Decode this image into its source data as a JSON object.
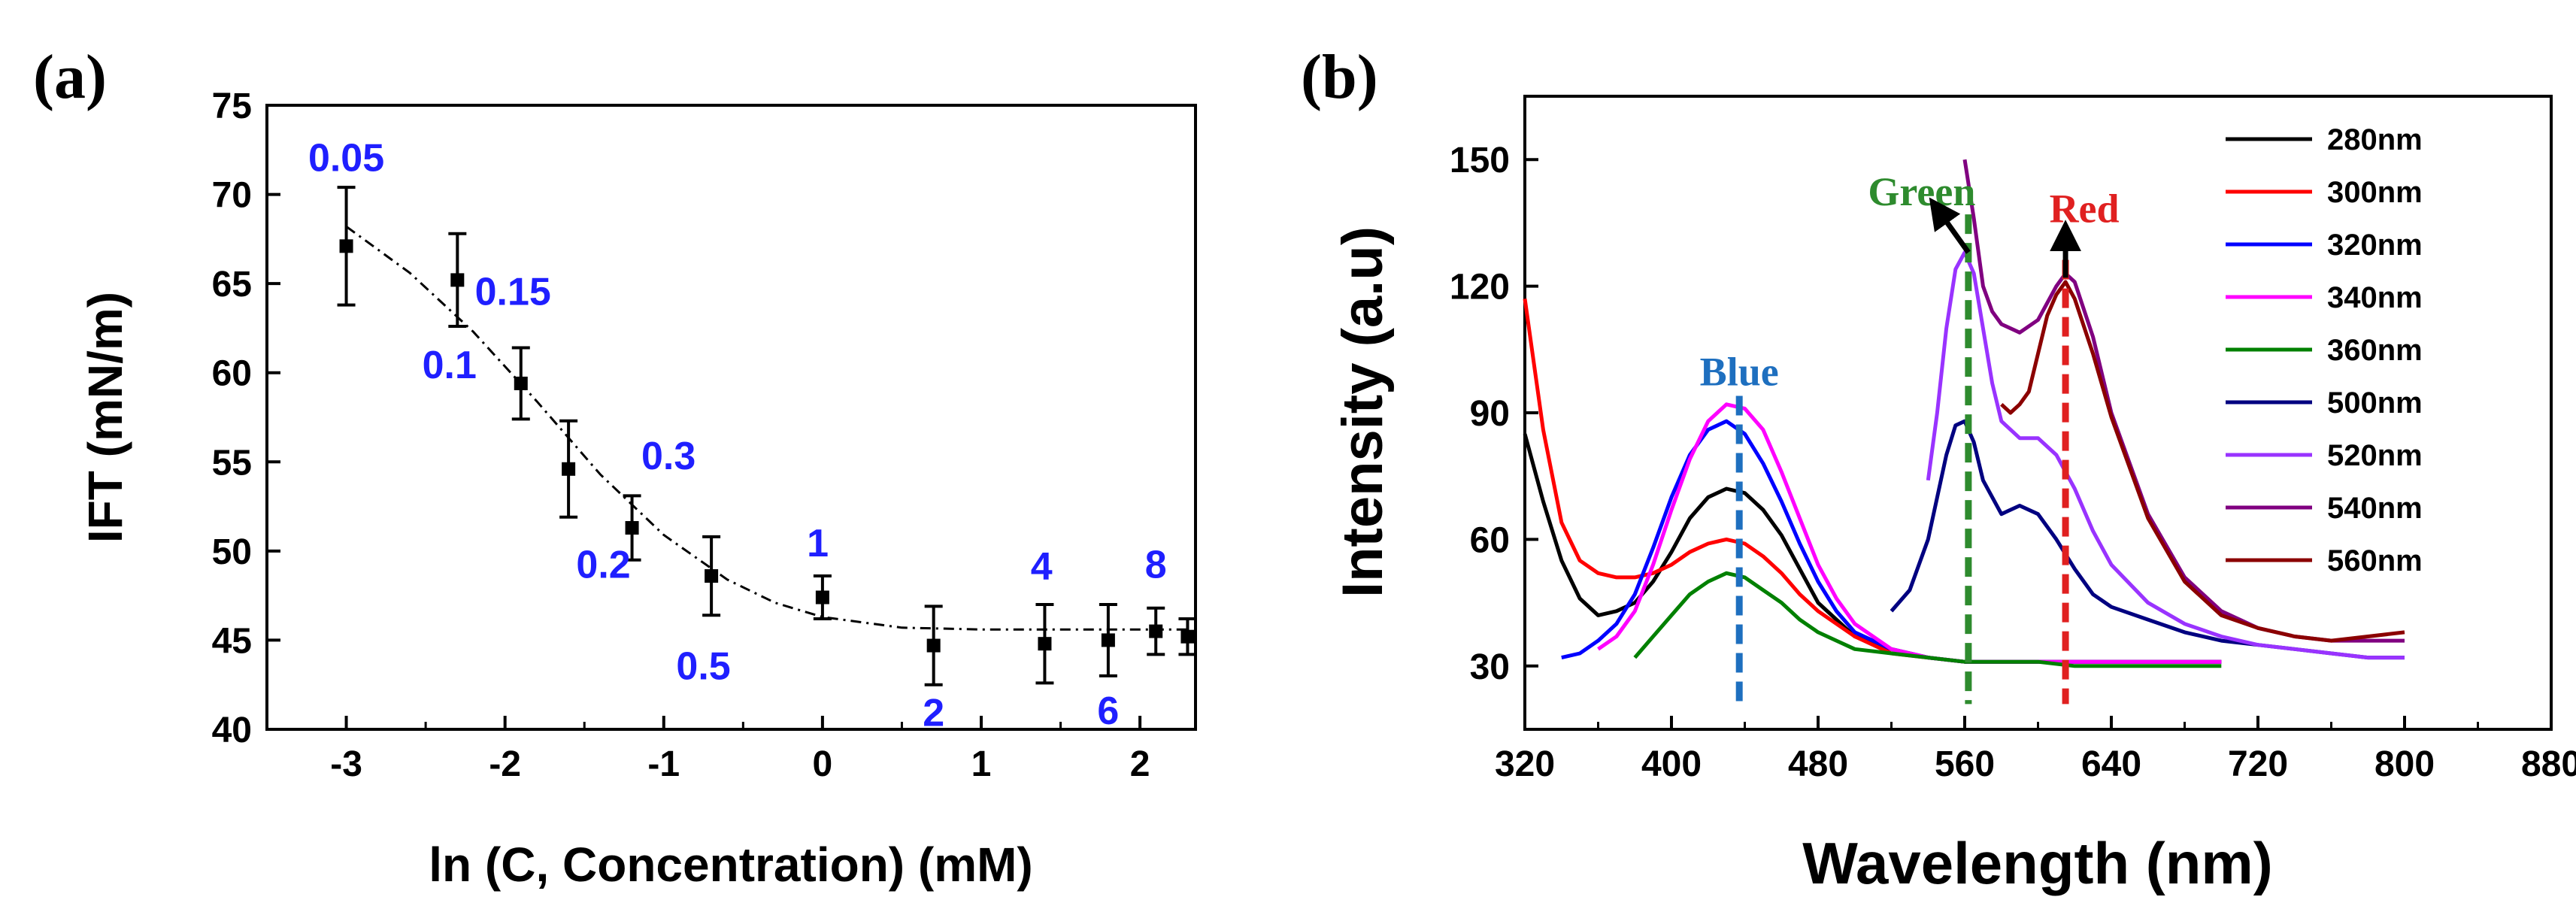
{
  "chart_data": [
    {
      "type": "scatter",
      "panel_label": "(a)",
      "xlabel": "ln (C, Concentration) (mM)",
      "ylabel": "IFT (mN/m)",
      "xlim": [
        -3.5,
        2.35
      ],
      "ylim": [
        40,
        75
      ],
      "xticks": [
        "-3",
        "-2",
        "-1",
        "0",
        "1",
        "2"
      ],
      "yticks": [
        "40",
        "45",
        "50",
        "55",
        "60",
        "65",
        "70",
        "75"
      ],
      "points": [
        {
          "x": -3.0,
          "y": 67.1,
          "err": 3.3
        },
        {
          "x": -2.3,
          "y": 65.2,
          "err": 2.6
        },
        {
          "x": -1.9,
          "y": 59.4,
          "err": 2.0
        },
        {
          "x": -1.6,
          "y": 54.6,
          "err": 2.7
        },
        {
          "x": -1.2,
          "y": 51.3,
          "err": 1.8
        },
        {
          "x": -0.7,
          "y": 48.6,
          "err": 2.2
        },
        {
          "x": 0.0,
          "y": 47.4,
          "err": 1.2
        },
        {
          "x": 0.7,
          "y": 44.7,
          "err": 2.2
        },
        {
          "x": 1.4,
          "y": 44.8,
          "err": 2.2
        },
        {
          "x": 1.8,
          "y": 45.0,
          "err": 2.0
        },
        {
          "x": 2.1,
          "y": 45.5,
          "err": 1.3
        },
        {
          "x": 2.3,
          "y": 45.2,
          "err": 1.0
        }
      ],
      "fit": {
        "x": [
          -3.0,
          -2.6,
          -2.2,
          -1.8,
          -1.4,
          -1.0,
          -0.6,
          -0.3,
          0.0,
          0.5,
          1.0,
          1.5,
          2.0,
          2.3
        ],
        "y": [
          68.2,
          65.6,
          62.3,
          58.4,
          54.3,
          50.9,
          48.4,
          47.1,
          46.3,
          45.7,
          45.6,
          45.6,
          45.6,
          45.6
        ]
      },
      "annotations": [
        {
          "text": "0.05",
          "x": -3.0,
          "y": 71.3
        },
        {
          "text": "0.15",
          "x": -1.95,
          "y": 63.8
        },
        {
          "text": "0.1",
          "x": -2.35,
          "y": 59.7
        },
        {
          "text": "0.3",
          "x": -0.97,
          "y": 54.6
        },
        {
          "text": "0.2",
          "x": -1.38,
          "y": 48.5
        },
        {
          "text": "0.5",
          "x": -0.75,
          "y": 42.8
        },
        {
          "text": "1",
          "x": -0.03,
          "y": 49.7
        },
        {
          "text": "2",
          "x": 0.7,
          "y": 40.2
        },
        {
          "text": "4",
          "x": 1.38,
          "y": 48.4
        },
        {
          "text": "6",
          "x": 1.8,
          "y": 40.3
        },
        {
          "text": "8",
          "x": 2.1,
          "y": 48.5
        }
      ]
    },
    {
      "type": "line",
      "panel_label": "(b)",
      "xlabel": "Wavelength (nm)",
      "ylabel": "Intensity (a.u)",
      "xlim": [
        320,
        880
      ],
      "ylim": [
        15,
        165
      ],
      "xticks": [
        "320",
        "400",
        "480",
        "560",
        "640",
        "720",
        "800",
        "880"
      ],
      "yticks": [
        "30",
        "60",
        "90",
        "120",
        "150"
      ],
      "series": [
        {
          "name": "280nm",
          "color": "#000000",
          "x": [
            320,
            330,
            340,
            350,
            360,
            370,
            380,
            390,
            400,
            410,
            420,
            430,
            440,
            450,
            460,
            470,
            480,
            500,
            520,
            540,
            560,
            580,
            600,
            620,
            640,
            660,
            680,
            700
          ],
          "y": [
            85,
            69,
            55,
            46,
            42,
            43,
            45,
            50,
            57,
            65,
            70,
            72,
            71,
            67,
            61,
            53,
            45,
            37,
            34,
            32,
            31,
            31,
            31,
            31,
            31,
            31,
            31,
            31
          ]
        },
        {
          "name": "300nm",
          "color": "#ff0000",
          "x": [
            320,
            330,
            340,
            350,
            360,
            370,
            380,
            390,
            400,
            410,
            420,
            430,
            440,
            450,
            460,
            470,
            480,
            500,
            520,
            540,
            560,
            580,
            600,
            620,
            640,
            660,
            680,
            700
          ],
          "y": [
            117,
            86,
            64,
            55,
            52,
            51,
            51,
            52,
            54,
            57,
            59,
            60,
            59,
            56,
            52,
            47,
            43,
            37,
            33,
            32,
            31,
            31,
            31,
            31,
            31,
            31,
            31,
            31
          ]
        },
        {
          "name": "320nm",
          "color": "#0000ff",
          "x": [
            340,
            350,
            360,
            370,
            380,
            390,
            400,
            410,
            420,
            430,
            440,
            450,
            460,
            470,
            480,
            490,
            500,
            520,
            540,
            560,
            580,
            600,
            620,
            640,
            660,
            680,
            700
          ],
          "y": [
            32,
            33,
            36,
            40,
            47,
            58,
            70,
            80,
            86,
            88,
            85,
            78,
            69,
            59,
            50,
            43,
            38,
            34,
            32,
            31,
            31,
            31,
            31,
            31,
            31,
            31,
            31
          ]
        },
        {
          "name": "340nm",
          "color": "#ff00ff",
          "x": [
            360,
            370,
            380,
            390,
            400,
            410,
            420,
            430,
            440,
            450,
            460,
            470,
            480,
            490,
            500,
            520,
            540,
            560,
            580,
            600,
            620,
            640,
            660,
            680,
            700
          ],
          "y": [
            34,
            37,
            43,
            54,
            67,
            79,
            88,
            92,
            91,
            86,
            76,
            65,
            54,
            46,
            40,
            34,
            32,
            31,
            31,
            31,
            31,
            31,
            31,
            31,
            31
          ]
        },
        {
          "name": "360nm",
          "color": "#008000",
          "x": [
            380,
            390,
            400,
            410,
            420,
            430,
            440,
            450,
            460,
            470,
            480,
            490,
            500,
            520,
            540,
            560,
            580,
            600,
            620,
            640,
            660,
            680,
            700
          ],
          "y": [
            32,
            37,
            42,
            47,
            50,
            52,
            51,
            48,
            45,
            41,
            38,
            36,
            34,
            33,
            32,
            31,
            31,
            31,
            30,
            30,
            30,
            30,
            30
          ]
        },
        {
          "name": "500nm",
          "color": "#000080",
          "x": [
            520,
            530,
            540,
            550,
            555,
            560,
            565,
            570,
            580,
            590,
            600,
            610,
            620,
            630,
            640,
            660,
            680,
            700,
            720,
            740,
            760,
            780,
            800
          ],
          "y": [
            43,
            48,
            60,
            80,
            87,
            88,
            83,
            74,
            66,
            68,
            66,
            60,
            53,
            47,
            44,
            41,
            38,
            36,
            35,
            34,
            33,
            32,
            32
          ]
        },
        {
          "name": "520nm",
          "color": "#9933ff",
          "x": [
            540,
            545,
            550,
            555,
            560,
            565,
            570,
            575,
            580,
            590,
            600,
            610,
            620,
            630,
            640,
            660,
            680,
            700,
            720,
            740,
            760,
            780,
            800
          ],
          "y": [
            74,
            90,
            110,
            124,
            128,
            123,
            110,
            97,
            88,
            84,
            84,
            80,
            72,
            62,
            54,
            45,
            40,
            37,
            35,
            34,
            33,
            32,
            32
          ]
        },
        {
          "name": "540nm",
          "color": "#800080",
          "x": [
            560,
            565,
            570,
            575,
            580,
            590,
            600,
            610,
            615,
            620,
            630,
            640,
            660,
            680,
            700,
            720,
            740,
            760,
            780,
            800
          ],
          "y": [
            150,
            136,
            120,
            114,
            111,
            109,
            112,
            120,
            123,
            121,
            108,
            90,
            66,
            51,
            43,
            39,
            37,
            36,
            36,
            36
          ]
        },
        {
          "name": "560nm",
          "color": "#8b0000",
          "x": [
            580,
            585,
            590,
            595,
            600,
            605,
            610,
            615,
            620,
            630,
            640,
            660,
            680,
            700,
            720,
            740,
            760,
            780,
            800
          ],
          "y": [
            92,
            90,
            92,
            95,
            104,
            113,
            118,
            121,
            117,
            104,
            89,
            65,
            50,
            42,
            39,
            37,
            36,
            37,
            38
          ]
        }
      ],
      "annotations": [
        {
          "text": "Blue",
          "color": "#1e6fbf",
          "line_x": 437,
          "y": 94
        },
        {
          "text": "Green",
          "color": "#2e8b2e",
          "line_x": 562,
          "y": 137
        },
        {
          "text": "Red",
          "color": "#e02020",
          "line_x": 615,
          "y": 133
        }
      ]
    }
  ]
}
